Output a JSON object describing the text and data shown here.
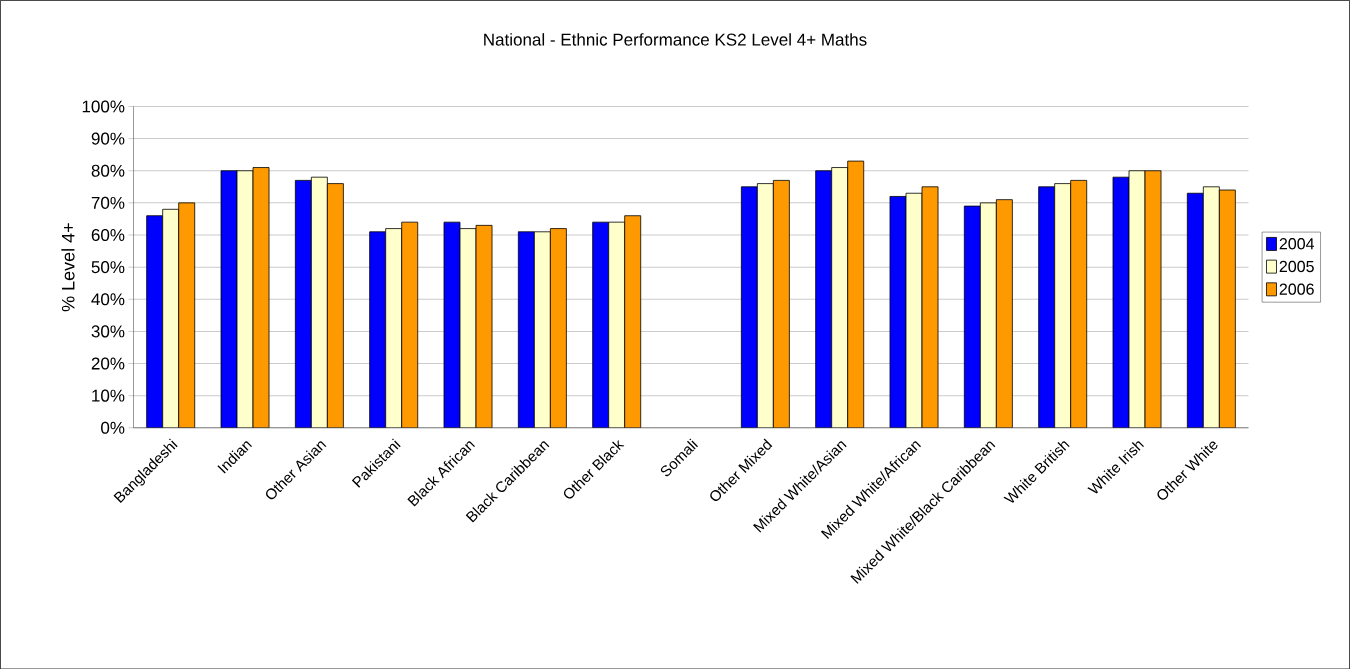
{
  "chart_data": {
    "type": "bar",
    "title": "National - Ethnic Performance KS2 Level 4+ Maths",
    "ylabel": "% Level 4+",
    "categories": [
      "Bangladeshi",
      "Indian",
      "Other Asian",
      "Pakistani",
      "Black African",
      "Black Caribbean",
      "Other Black",
      "Somali",
      "Other Mixed",
      "Mixed White/Asian",
      "Mixed White/African",
      "Mixed White/Black Caribbean",
      "White British",
      "White Irish",
      "Other White"
    ],
    "series": [
      {
        "name": "2004",
        "color": "#0000ff",
        "values": [
          66,
          80,
          77,
          61,
          64,
          61,
          64,
          null,
          75,
          80,
          72,
          69,
          75,
          78,
          73
        ]
      },
      {
        "name": "2005",
        "color": "#ffffcc",
        "values": [
          68,
          80,
          78,
          62,
          62,
          61,
          64,
          null,
          76,
          81,
          73,
          70,
          76,
          80,
          75
        ]
      },
      {
        "name": "2006",
        "color": "#ff9900",
        "values": [
          70,
          81,
          76,
          64,
          63,
          62,
          66,
          null,
          77,
          83,
          75,
          71,
          77,
          80,
          74
        ]
      }
    ],
    "ylim": [
      0,
      100
    ],
    "yticks": [
      {
        "value": 0,
        "label": "0%"
      },
      {
        "value": 10,
        "label": "10%"
      },
      {
        "value": 20,
        "label": "20%"
      },
      {
        "value": 30,
        "label": "30%"
      },
      {
        "value": 40,
        "label": "40%"
      },
      {
        "value": 50,
        "label": "50%"
      },
      {
        "value": 60,
        "label": "60%"
      },
      {
        "value": 70,
        "label": "70%"
      },
      {
        "value": 80,
        "label": "80%"
      },
      {
        "value": 90,
        "label": "90%"
      },
      {
        "value": 100,
        "label": "100%"
      }
    ],
    "grid": "y",
    "legend": "right"
  }
}
